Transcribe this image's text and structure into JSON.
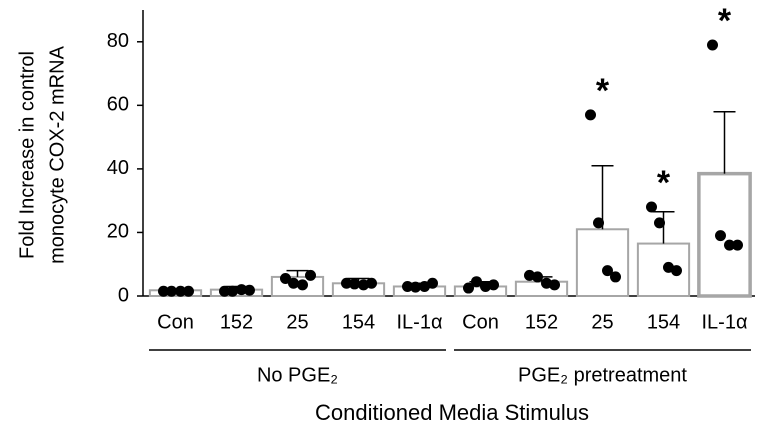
{
  "chart_data": {
    "type": "bar",
    "ylabel": [
      "Fold Increase in control",
      "monocyte COX-2 mRNA"
    ],
    "xlabel": "Conditioned Media Stimulus",
    "categories": [
      "Con",
      "152",
      "25",
      "154",
      "IL-1α",
      "Con",
      "152",
      "25",
      "154",
      "IL-1α"
    ],
    "group_labels": [
      "No PGE₂",
      "PGE₂  pretreatment"
    ],
    "values": [
      1.8,
      2,
      6,
      4,
      3,
      3,
      4.5,
      21,
      16.5,
      38.5
    ],
    "errors": [
      0.3,
      1,
      2,
      1.5,
      1,
      1.5,
      1.5,
      20,
      10,
      19.5
    ],
    "points": [
      [
        1.5,
        1.5,
        1.5,
        1.5
      ],
      [
        1.5,
        1.5,
        2,
        1.8
      ],
      [
        5.5,
        4,
        3.5,
        6.5
      ],
      [
        4,
        3.8,
        3.5,
        4
      ],
      [
        3,
        2.8,
        3,
        4
      ],
      [
        2.5,
        4.5,
        3,
        3.5
      ],
      [
        6.5,
        6,
        4,
        3.5
      ],
      [
        57,
        23,
        8,
        6
      ],
      [
        28,
        23,
        9,
        8
      ],
      [
        79,
        19,
        16,
        16
      ]
    ],
    "significance": [
      null,
      null,
      null,
      null,
      null,
      null,
      null,
      "*",
      "*",
      "*"
    ],
    "color": "#a6a6a6",
    "point_color": "#000000",
    "ylim": [
      0,
      90
    ],
    "yticks": [
      0,
      20,
      40,
      60,
      80
    ],
    "grid": false
  }
}
